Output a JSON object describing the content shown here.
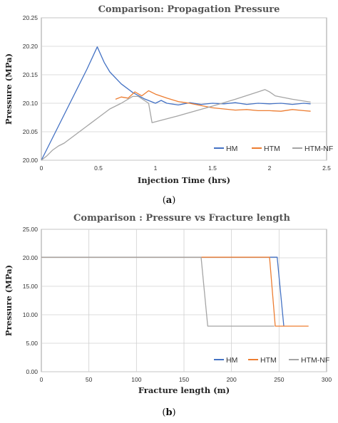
{
  "colors": {
    "HM": "#4472c4",
    "HTM": "#ed7d31",
    "HTM-NF": "#a5a5a5",
    "grid": "#d0d0d0",
    "axis": "#888888"
  },
  "chart_data": [
    {
      "id": "a",
      "caption": "a",
      "type": "line",
      "title": "Comparison: Propagation Pressure",
      "xlabel": "Injection Time (hrs)",
      "ylabel": "Pressure (MPa)",
      "xlim": [
        0,
        2.5
      ],
      "ylim": [
        20.0,
        20.25
      ],
      "xticks": [
        0,
        0.5,
        1,
        1.5,
        2,
        2.5
      ],
      "yticks": [
        20.0,
        20.05,
        20.1,
        20.15,
        20.2,
        20.25
      ],
      "xtick_labels": [
        "0",
        "0.5",
        "1",
        "1.5",
        "2",
        "2.5"
      ],
      "ytick_labels": [
        "20.00",
        "20.05",
        "20.10",
        "20.15",
        "20.20",
        "20.25"
      ],
      "grid": "horizontal",
      "legend": "bottom-right",
      "series": [
        {
          "name": "HM",
          "x": [
            0,
            0.1,
            0.2,
            0.3,
            0.4,
            0.49,
            0.55,
            0.6,
            0.7,
            0.8,
            0.9,
            1.0,
            1.05,
            1.1,
            1.2,
            1.3,
            1.4,
            1.5,
            1.6,
            1.7,
            1.8,
            1.9,
            2.0,
            2.1,
            2.2,
            2.3,
            2.36
          ],
          "y": [
            20.0,
            20.04,
            20.08,
            20.12,
            20.16,
            20.199,
            20.172,
            20.155,
            20.134,
            20.119,
            20.108,
            20.1,
            20.105,
            20.1,
            20.097,
            20.101,
            20.098,
            20.1,
            20.099,
            20.101,
            20.098,
            20.1,
            20.099,
            20.1,
            20.098,
            20.1,
            20.099
          ]
        },
        {
          "name": "HTM",
          "x": [
            0.65,
            0.7,
            0.76,
            0.82,
            0.88,
            0.94,
            1.0,
            1.1,
            1.2,
            1.3,
            1.4,
            1.5,
            1.6,
            1.7,
            1.8,
            1.9,
            2.0,
            2.1,
            2.2,
            2.3,
            2.36
          ],
          "y": [
            20.107,
            20.111,
            20.109,
            20.12,
            20.113,
            20.122,
            20.116,
            20.109,
            20.103,
            20.1,
            20.096,
            20.092,
            20.09,
            20.088,
            20.089,
            20.087,
            20.087,
            20.086,
            20.089,
            20.087,
            20.086
          ]
        },
        {
          "name": "HTM-NF",
          "x": [
            0,
            0.05,
            0.1,
            0.15,
            0.2,
            0.3,
            0.4,
            0.5,
            0.6,
            0.7,
            0.8,
            0.85,
            0.94,
            0.97,
            1.2,
            1.5,
            1.7,
            1.9,
            1.96,
            2.0,
            2.05,
            2.2,
            2.36
          ],
          "y": [
            20.0,
            20.008,
            20.018,
            20.025,
            20.03,
            20.045,
            20.06,
            20.075,
            20.09,
            20.1,
            20.112,
            20.112,
            20.1,
            20.066,
            20.078,
            20.095,
            20.107,
            20.12,
            20.124,
            20.12,
            20.113,
            20.107,
            20.102
          ]
        }
      ]
    },
    {
      "id": "b",
      "caption": "b",
      "type": "line",
      "title": "Comparison : Pressure vs Fracture length",
      "xlabel": "Fracture length (m)",
      "ylabel": "Pressure (MPa)",
      "xlim": [
        0,
        300
      ],
      "ylim": [
        0,
        25
      ],
      "xticks": [
        0,
        50,
        100,
        150,
        200,
        250,
        300
      ],
      "yticks": [
        0,
        5,
        10,
        15,
        20,
        25
      ],
      "xtick_labels": [
        "0",
        "50",
        "100",
        "150",
        "200",
        "250",
        "300"
      ],
      "ytick_labels": [
        "0.00",
        "5.00",
        "10.00",
        "15.00",
        "20.00",
        "25.00"
      ],
      "grid": "both",
      "legend": "bottom-right",
      "series": [
        {
          "name": "HM",
          "x": [
            0,
            248,
            255
          ],
          "y": [
            20.1,
            20.1,
            8.0
          ]
        },
        {
          "name": "HTM",
          "x": [
            0,
            240,
            246,
            281
          ],
          "y": [
            20.1,
            20.1,
            8.0,
            8.0
          ]
        },
        {
          "name": "HTM-NF",
          "x": [
            0,
            168,
            175,
            245
          ],
          "y": [
            20.1,
            20.1,
            8.0,
            8.0
          ]
        }
      ]
    }
  ]
}
